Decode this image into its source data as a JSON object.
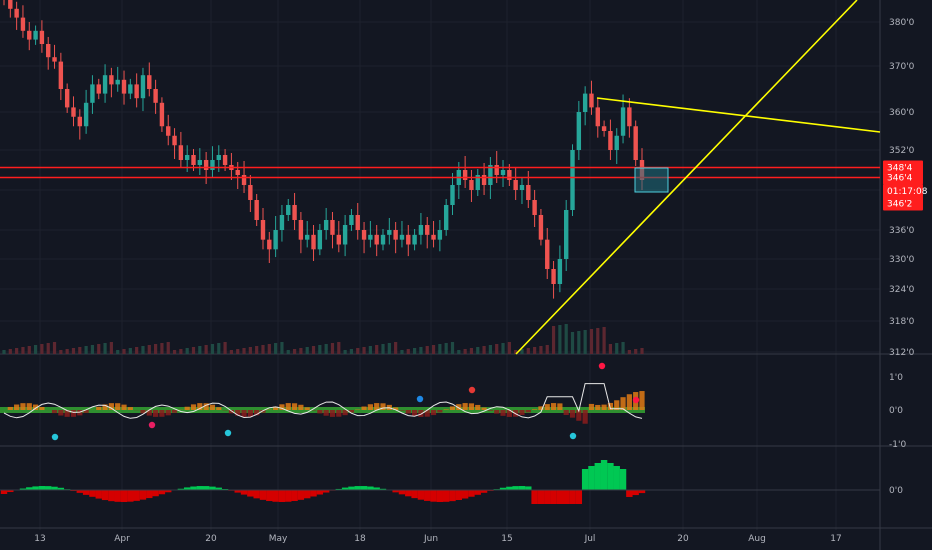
{
  "chart_data": {
    "type": "candlestick",
    "price_panel": {
      "y_ticks": [
        "380'0",
        "370'0",
        "360'0",
        "352'0",
        "336'0",
        "330'0",
        "324'0",
        "318'0",
        "312'0"
      ],
      "horizontal_levels": [
        348.5,
        346.5
      ],
      "price_tags": [
        {
          "label": "348'4",
          "value": 348.5,
          "color": "#ff1e1e"
        },
        {
          "label": "346'4",
          "value": 346.5,
          "color": "#ff1e1e"
        },
        {
          "label": "01:17:08",
          "value": 343.8,
          "color": "#ff1e1e"
        },
        {
          "label": "346'2",
          "value": 341.3,
          "color": "#ff1e1e"
        }
      ],
      "trendlines_color": "#ffff00",
      "series_close": [
        385,
        383,
        381,
        378,
        376,
        378,
        375,
        372,
        371,
        365,
        361,
        359,
        357,
        362,
        366,
        364,
        368,
        366,
        367,
        364,
        366,
        363,
        368,
        365,
        362,
        357,
        355,
        353,
        350,
        351,
        349,
        350,
        348,
        350,
        351,
        349,
        348,
        347,
        345,
        342,
        338,
        334,
        332,
        336,
        339,
        341,
        338,
        334,
        335,
        332,
        336,
        338,
        335,
        333,
        337,
        339,
        336,
        334,
        335,
        333,
        335,
        336,
        334,
        335,
        333,
        335,
        337,
        335,
        334,
        336,
        341,
        345,
        348,
        346,
        344,
        347,
        345,
        349,
        347,
        348,
        346,
        344,
        345,
        342,
        339,
        334,
        328,
        325,
        330,
        340,
        352,
        360,
        364,
        361,
        357,
        356,
        352,
        355,
        361,
        357,
        350,
        346
      ]
    },
    "indicator1": {
      "y_ticks": [
        "1'0",
        "0'0",
        "-1'0"
      ]
    },
    "indicator2": {
      "y_ticks": [
        "0'0"
      ]
    },
    "x_ticks": [
      "13",
      "Apr",
      "20",
      "May",
      "18",
      "Jun",
      "15",
      "Jul",
      "20",
      "Aug",
      "17"
    ]
  }
}
